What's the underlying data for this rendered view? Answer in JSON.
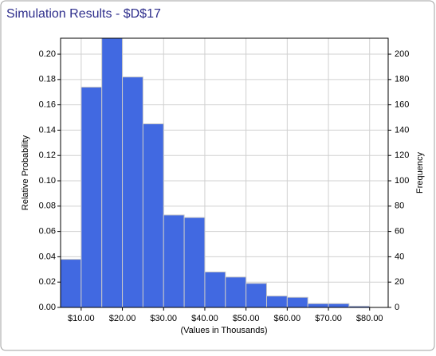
{
  "chart_data": {
    "type": "histogram",
    "title": "Simulation Results - $D$17",
    "x_label": "(Values in Thousands)",
    "y_label": "Relative Probability",
    "y2_label": "Frequency",
    "bins": [
      5,
      10,
      15,
      20,
      25,
      30,
      35,
      40,
      45,
      50,
      55,
      60,
      65,
      70,
      75,
      80
    ],
    "values": [
      0.038,
      0.174,
      0.214,
      0.182,
      0.145,
      0.073,
      0.071,
      0.028,
      0.024,
      0.019,
      0.009,
      0.008,
      0.003,
      0.003,
      0.001
    ],
    "color": "#4169e1",
    "xlim": [
      5,
      84.5
    ],
    "xticks": [
      {
        "value": 10,
        "label": "$10.00"
      },
      {
        "value": 20,
        "label": "$20.00"
      },
      {
        "value": 30,
        "label": "$30.00"
      },
      {
        "value": 40,
        "label": "$40.00"
      },
      {
        "value": 50,
        "label": "$50.00"
      },
      {
        "value": 60,
        "label": "$60.00"
      },
      {
        "value": 70,
        "label": "$70.00"
      },
      {
        "value": 80,
        "label": "$80.00"
      }
    ],
    "ylim": [
      0,
      0.2126
    ],
    "yticks": [
      {
        "value": 0,
        "label": "0.00"
      },
      {
        "value": 0.02,
        "label": "0.02"
      },
      {
        "value": 0.04,
        "label": "0.04"
      },
      {
        "value": 0.06,
        "label": "0.06"
      },
      {
        "value": 0.08,
        "label": "0.08"
      },
      {
        "value": 0.1,
        "label": "0.10"
      },
      {
        "value": 0.12,
        "label": "0.12"
      },
      {
        "value": 0.14,
        "label": "0.14"
      },
      {
        "value": 0.16,
        "label": "0.16"
      },
      {
        "value": 0.18,
        "label": "0.18"
      },
      {
        "value": 0.2,
        "label": "0.20"
      }
    ],
    "y2lim": [
      0,
      212.6
    ],
    "y2ticks": [
      0,
      20,
      40,
      60,
      80,
      100,
      120,
      140,
      160,
      180,
      200
    ],
    "grid": true
  }
}
